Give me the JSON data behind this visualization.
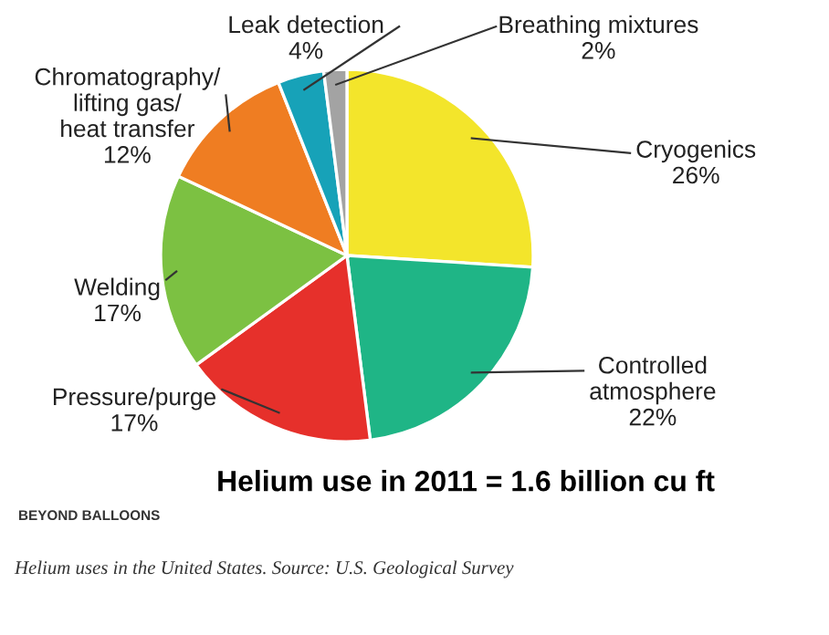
{
  "chart_data": {
    "type": "pie",
    "title": "Helium use in 2011 = 1.6 billion cu ft",
    "categories": [
      "Cryogenics",
      "Controlled atmosphere",
      "Pressure/purge",
      "Welding",
      "Chromatography/ lifting gas/ heat transfer",
      "Leak detection",
      "Breathing mixtures"
    ],
    "values": [
      26,
      22,
      17,
      17,
      12,
      4,
      2
    ],
    "value_labels": [
      "26%",
      "22%",
      "17%",
      "17%",
      "12%",
      "4%",
      "2%"
    ],
    "colors": [
      "#f3e52b",
      "#1fb586",
      "#e6302b",
      "#7cc142",
      "#ef7d22",
      "#17a2b8",
      "#a3a3a3"
    ],
    "annotations": [
      "BEYOND BALLOONS",
      "Helium uses in the United States. Source: U.S. Geological Survey"
    ]
  }
}
